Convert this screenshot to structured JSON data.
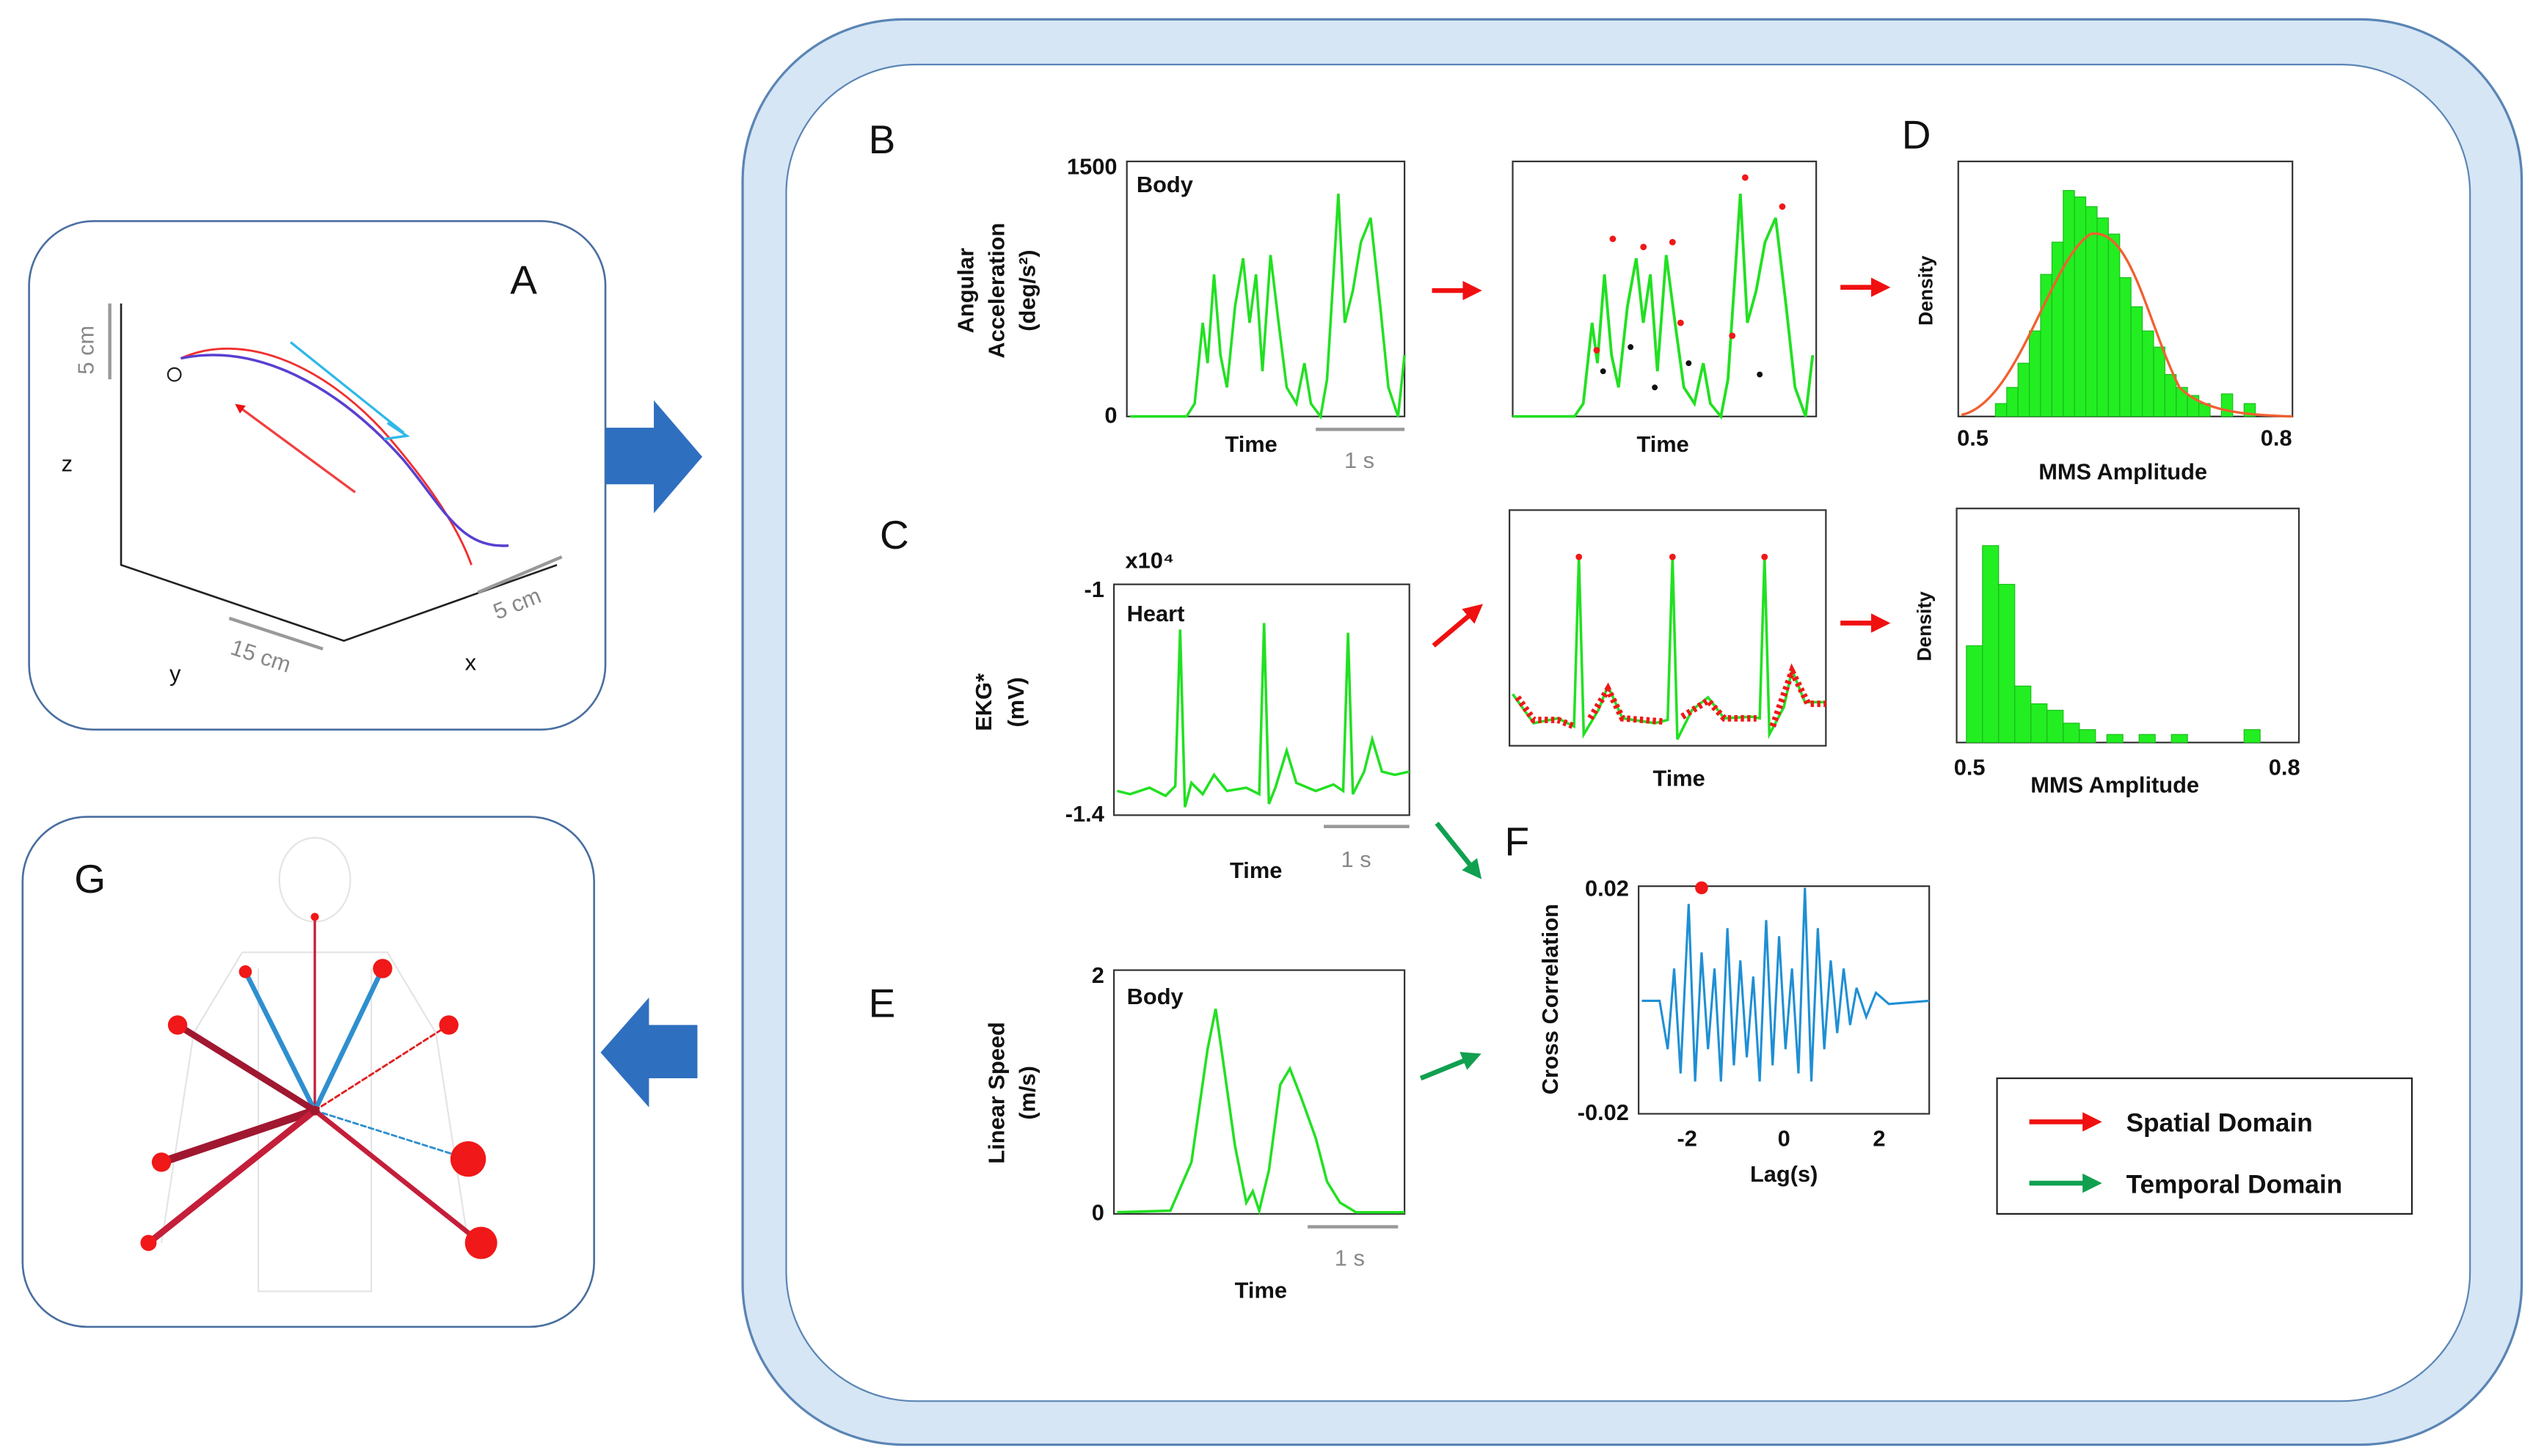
{
  "panels": {
    "A": {
      "label": "A",
      "scale_z": "5 cm",
      "axis_z": "z",
      "scale_y": "15 cm",
      "axis_y": "y",
      "scale_x": "5 cm",
      "axis_x": "x"
    },
    "B": {
      "label": "B",
      "y_label_1": "Angular",
      "y_label_2": "Acceleration",
      "y_label_3": "(deg/s²)",
      "y_max": "1500",
      "y_min": "0",
      "tag": "Body",
      "x_label": "Time",
      "scale": "1 s",
      "peaks_x_label": "Time"
    },
    "C": {
      "label": "C",
      "y_label_1": "EKG*",
      "y_label_2": "(mV)",
      "exponent": "x10⁴",
      "y_max": "-1",
      "y_min": "-1.4",
      "tag": "Heart",
      "x_label": "Time",
      "scale": "1 s",
      "peaks_x_label": "Time"
    },
    "D": {
      "label": "D",
      "hist_top": {
        "y_label": "Density",
        "x_min": "0.5",
        "x_max": "0.8",
        "x_label": "MMS  Amplitude"
      },
      "hist_bottom": {
        "y_label": "Density",
        "x_min": "0.5",
        "x_max": "0.8",
        "x_label": "MMS  Amplitude"
      }
    },
    "E": {
      "label": "E",
      "y_label": "Linear Speed",
      "y_unit": "(m/s)",
      "y_max": "2",
      "y_min": "0",
      "tag": "Body",
      "x_label": "Time",
      "scale": "1 s"
    },
    "F": {
      "label": "F",
      "y_label": "Cross Correlation",
      "y_max": "0.02",
      "y_min": "-0.02",
      "x_ticks": [
        "-2",
        "0",
        "2"
      ],
      "x_label": "Lag(s)"
    },
    "G": {
      "label": "G"
    }
  },
  "legend": [
    {
      "label": "Spatial Domain"
    },
    {
      "label": "Temporal Domain"
    }
  ]
}
